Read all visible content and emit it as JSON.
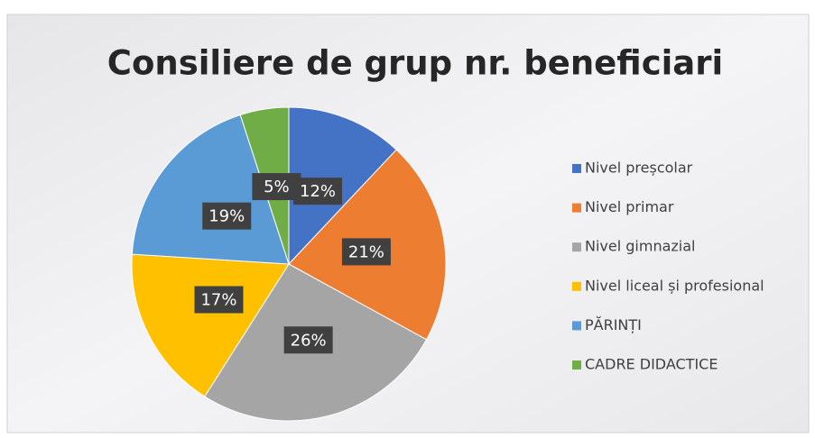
{
  "chart_data": {
    "type": "pie",
    "title": "Consiliere de grup nr. beneficiari",
    "categories": [
      "Nivel preșcolar",
      "Nivel primar",
      "Nivel gimnazial",
      "Nivel liceal și profesional",
      "PĂRINȚI",
      "CADRE DIDACTICE"
    ],
    "values": [
      12,
      21,
      26,
      17,
      19,
      5
    ],
    "value_labels": [
      "12%",
      "21%",
      "26%",
      "17%",
      "19%",
      "5%"
    ],
    "colors": [
      "#4472c4",
      "#ed7d31",
      "#a5a5a5",
      "#ffc000",
      "#5b9bd5",
      "#70ad47"
    ],
    "legend": "right"
  }
}
